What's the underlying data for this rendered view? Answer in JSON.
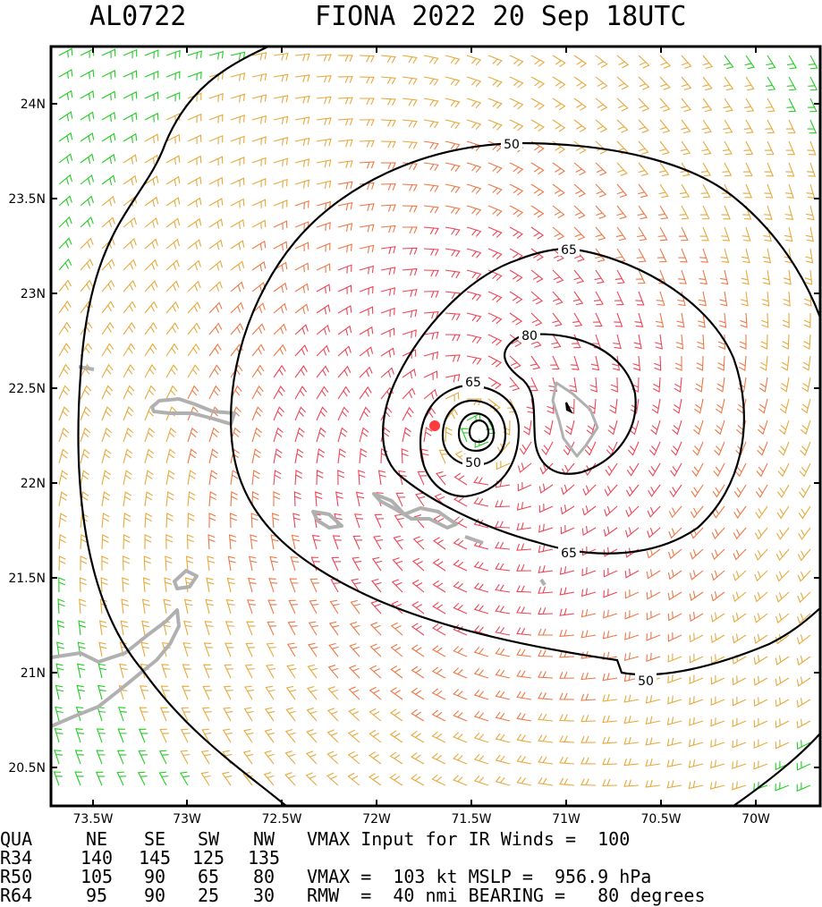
{
  "header": {
    "storm_id": "AL0722",
    "storm_title": "FIONA 2022 20 Sep 18UTC"
  },
  "axes": {
    "lat_ticks": [
      "24N",
      "23.5N",
      "23N",
      "22.5N",
      "22N",
      "21.5N",
      "21N",
      "20.5N"
    ],
    "lon_ticks": [
      "73.5W",
      "73W",
      "72.5W",
      "72W",
      "71.5W",
      "71W",
      "70.5W",
      "70W"
    ]
  },
  "contour_labels": [
    "50",
    "65",
    "80",
    "65",
    "50",
    "65",
    "50"
  ],
  "table": {
    "header": [
      "QUA",
      "NE",
      "SE",
      "SW",
      "NW"
    ],
    "rows": [
      {
        "name": "R34",
        "values": [
          "140",
          "145",
          "125",
          "135"
        ]
      },
      {
        "name": "R50",
        "values": [
          "105",
          "90",
          "65",
          "80"
        ]
      },
      {
        "name": "R64",
        "values": [
          "95",
          "90",
          "25",
          "30"
        ]
      }
    ]
  },
  "info": {
    "line1": "VMAX Input for IR Winds =  100",
    "line2": "VMAX =  103 kt MSLP =  956.9 hPa",
    "line3": "RMW  =  40 nmi BEARING =   80 degrees"
  },
  "colors": {
    "wind_lt34": "#22cc22",
    "wind_34_50": "#e8a83a",
    "wind_50_64": "#ee7744",
    "wind_gt64": "#ee4455",
    "land": "#b0b0b0",
    "center_dot": "#ff3b3b"
  }
}
